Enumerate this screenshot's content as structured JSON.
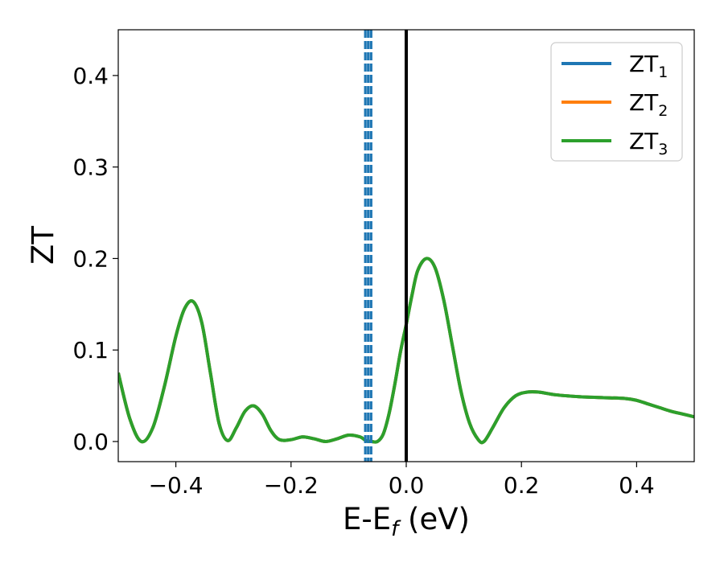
{
  "chart_data": {
    "type": "line",
    "xlabel": {
      "main": "E-E",
      "sub": "f",
      "rest": " (eV)"
    },
    "ylabel": "ZT",
    "xlim": [
      -0.5,
      0.5
    ],
    "ylim": [
      -0.022,
      0.45
    ],
    "xticks": [
      -0.4,
      -0.2,
      0.0,
      0.2,
      0.4
    ],
    "xtick_labels": [
      "−0.4",
      "−0.2",
      "0.0",
      "0.2",
      "0.4"
    ],
    "yticks": [
      0.0,
      0.1,
      0.2,
      0.3,
      0.4
    ],
    "ytick_labels": [
      "0.0",
      "0.1",
      "0.2",
      "0.3",
      "0.4"
    ],
    "grid": false,
    "legend_position": "top-right",
    "series": [
      {
        "name": "ZT",
        "sub": "1",
        "color": "#1f77b4",
        "style": "solid"
      },
      {
        "name": "ZT",
        "sub": "2",
        "color": "#ff7f0e",
        "style": "solid"
      },
      {
        "name": "ZT",
        "sub": "3",
        "color": "#2ca02c",
        "style": "solid"
      }
    ],
    "curve": {
      "x": [
        -0.5,
        -0.48,
        -0.46,
        -0.44,
        -0.42,
        -0.4,
        -0.385,
        -0.37,
        -0.355,
        -0.34,
        -0.325,
        -0.31,
        -0.295,
        -0.28,
        -0.265,
        -0.25,
        -0.235,
        -0.22,
        -0.2,
        -0.18,
        -0.16,
        -0.14,
        -0.12,
        -0.1,
        -0.08,
        -0.07,
        -0.06,
        -0.05,
        -0.04,
        -0.03,
        -0.02,
        -0.01,
        0.0,
        0.01,
        0.02,
        0.035,
        0.05,
        0.065,
        0.08,
        0.095,
        0.11,
        0.125,
        0.135,
        0.15,
        0.17,
        0.19,
        0.21,
        0.23,
        0.26,
        0.3,
        0.34,
        0.38,
        0.4,
        0.42,
        0.44,
        0.46,
        0.48,
        0.5
      ],
      "y": [
        0.075,
        0.025,
        0.0,
        0.015,
        0.06,
        0.115,
        0.145,
        0.153,
        0.13,
        0.075,
        0.02,
        0.001,
        0.015,
        0.033,
        0.039,
        0.03,
        0.012,
        0.002,
        0.002,
        0.005,
        0.003,
        0.0,
        0.003,
        0.007,
        0.005,
        0.001,
        0.0,
        0.0,
        0.008,
        0.03,
        0.062,
        0.098,
        0.128,
        0.16,
        0.187,
        0.2,
        0.19,
        0.155,
        0.105,
        0.055,
        0.02,
        0.002,
        0.0,
        0.015,
        0.037,
        0.05,
        0.054,
        0.054,
        0.051,
        0.049,
        0.048,
        0.047,
        0.045,
        0.041,
        0.037,
        0.033,
        0.03,
        0.027
      ]
    },
    "vlines": [
      {
        "x": -0.071,
        "color": "#1f77b4",
        "style": "dashed"
      },
      {
        "x": -0.066,
        "color": "#1f77b4",
        "style": "dashed"
      },
      {
        "x": -0.061,
        "color": "#1f77b4",
        "style": "dashed"
      },
      {
        "x": 0.0,
        "color": "#000000",
        "style": "solid"
      }
    ]
  }
}
